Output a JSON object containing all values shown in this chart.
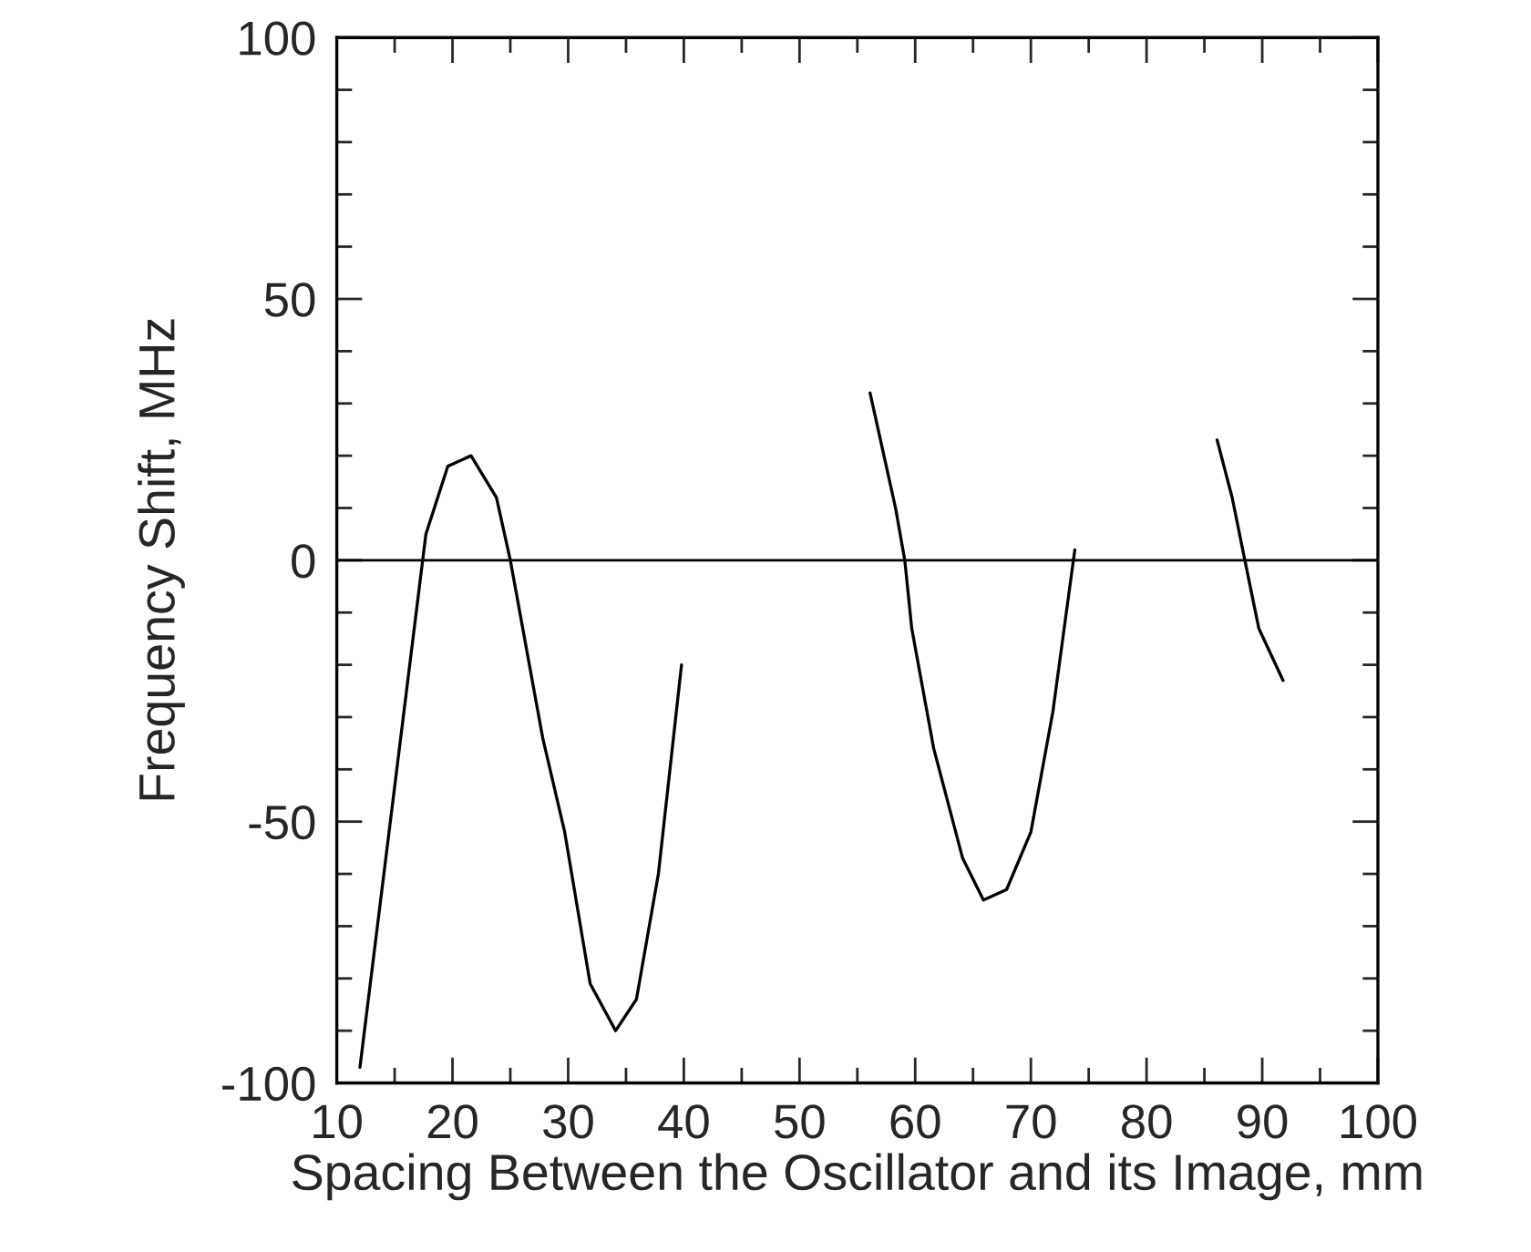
{
  "chart_data": {
    "type": "line",
    "xlabel": "Spacing Between the Oscillator and its Image, mm",
    "ylabel": "Frequency Shift, MHz",
    "series": [
      {
        "color": "#000000",
        "x": [
          12,
          17.7,
          19.6,
          21.6,
          23.8,
          25,
          27.8,
          29.7,
          31.9,
          34.1,
          35.9,
          37.8,
          39.8
        ],
        "values": [
          -97,
          5,
          18,
          20,
          12,
          0,
          -34,
          -52,
          -81,
          -90,
          -84,
          -60,
          -20
        ]
      },
      {
        "color": "#000000",
        "x": [
          56.1,
          58.3,
          59.1,
          59.7,
          61.6,
          64.1,
          65.9,
          67.9,
          70,
          71.9,
          73.8
        ],
        "values": [
          32,
          10,
          0,
          -13,
          -36,
          -57,
          -65,
          -63,
          -52,
          -29,
          2
        ]
      },
      {
        "color": "#000000",
        "x": [
          86.1,
          87.4,
          88.5,
          89.7,
          91.8
        ],
        "values": [
          23,
          12,
          0,
          -13,
          -23
        ]
      }
    ],
    "ref_lines": [
      {
        "axis": "y",
        "value": 0,
        "color": "#000000"
      }
    ],
    "xlim": [
      10,
      100
    ],
    "ylim": [
      -100,
      100
    ],
    "xticks": [
      10,
      {
        "value": 15,
        "label": null
      },
      20,
      {
        "value": 25,
        "label": null
      },
      30,
      {
        "value": 35,
        "label": null
      },
      40,
      {
        "value": 45,
        "label": null
      },
      50,
      {
        "value": 55,
        "label": null
      },
      60,
      {
        "value": 65,
        "label": null
      },
      70,
      {
        "value": 75,
        "label": null
      },
      80,
      {
        "value": 85,
        "label": null
      },
      90,
      {
        "value": 95,
        "label": null
      },
      100
    ],
    "yticks": [
      -100,
      {
        "value": -90,
        "label": null
      },
      {
        "value": -80,
        "label": null
      },
      {
        "value": -70,
        "label": null
      },
      {
        "value": -60,
        "label": null
      },
      -50,
      {
        "value": -40,
        "label": null
      },
      {
        "value": -30,
        "label": null
      },
      {
        "value": -20,
        "label": null
      },
      {
        "value": -10,
        "label": null
      },
      0,
      {
        "value": 10,
        "label": null
      },
      {
        "value": 20,
        "label": null
      },
      {
        "value": 30,
        "label": null
      },
      {
        "value": 40,
        "label": null
      },
      50,
      {
        "value": 60,
        "label": null
      },
      {
        "value": 70,
        "label": null
      },
      {
        "value": 80,
        "label": null
      },
      {
        "value": 90,
        "label": null
      },
      100
    ],
    "grid": false,
    "legend": false,
    "marker": "none",
    "line_style": "solid"
  }
}
